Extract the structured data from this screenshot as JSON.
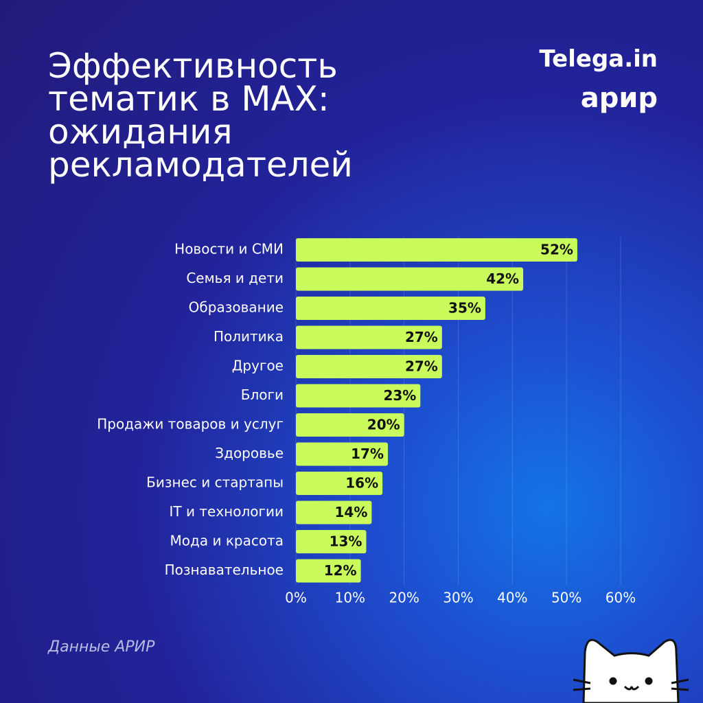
{
  "chart_data": {
    "type": "barh",
    "title": "Эффективность тематик в MAX: ожидания рекламодателей",
    "brand": [
      "Telega.in",
      "арир"
    ],
    "source": "Данные АРИР",
    "categories": [
      "Новости и СМИ",
      "Семья и дети",
      "Образование",
      "Политика",
      "Другое",
      "Блоги",
      "Продажи товаров и услуг",
      "Здоровье",
      "Бизнес и стартапы",
      "IT и технологии",
      "Мода и красота",
      "Познавательное"
    ],
    "values": [
      52,
      42,
      35,
      27,
      27,
      23,
      20,
      17,
      16,
      14,
      13,
      12
    ],
    "value_labels": [
      "52%",
      "42%",
      "35%",
      "27%",
      "27%",
      "23%",
      "20%",
      "17%",
      "16%",
      "14%",
      "13%",
      "12%"
    ],
    "color": "#c9fb5c",
    "xlim": [
      0,
      60
    ],
    "xticks": [
      {
        "value": 0,
        "label": "0%"
      },
      {
        "value": 10,
        "label": "10%"
      },
      {
        "value": 20,
        "label": "20%"
      },
      {
        "value": 30,
        "label": "30%"
      },
      {
        "value": 40,
        "label": "40%"
      },
      {
        "value": 50,
        "label": "50%"
      },
      {
        "value": 60,
        "label": "60%"
      }
    ],
    "grid": true
  }
}
